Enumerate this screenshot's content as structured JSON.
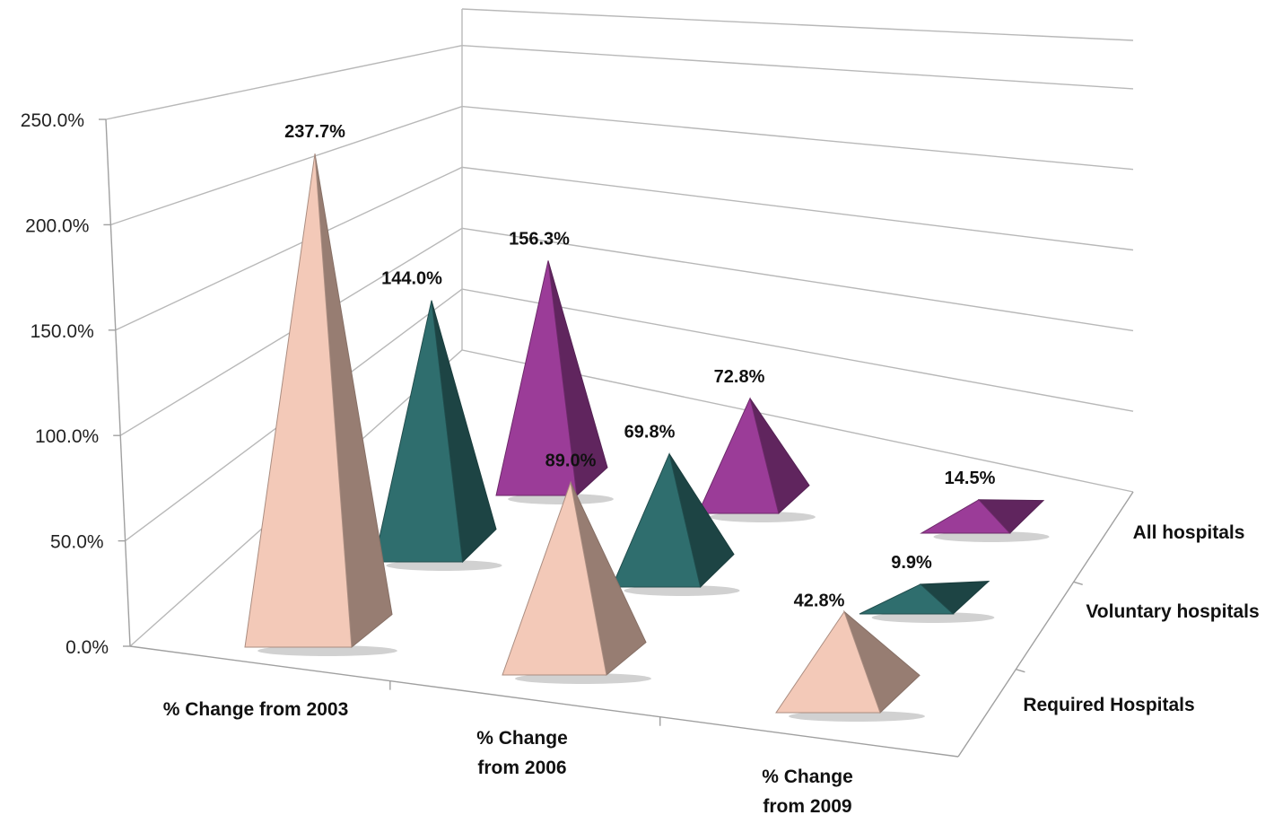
{
  "chart_data": {
    "type": "bar",
    "style": "3d-pyramid",
    "categories": [
      "% Change from 2003",
      "% Change from 2006",
      "% Change from 2009"
    ],
    "series": [
      {
        "name": "Required Hospitals",
        "values": [
          237.7,
          89.0,
          42.8
        ],
        "color": "#F3C9B8"
      },
      {
        "name": "Voluntary hospitals",
        "values": [
          144.0,
          69.8,
          9.9
        ],
        "color": "#2F6E6E"
      },
      {
        "name": "All hospitals",
        "values": [
          156.3,
          72.8,
          14.5
        ],
        "color": "#9B3C98"
      }
    ],
    "data_labels": [
      [
        "237.7%",
        "89.0%",
        "42.8%"
      ],
      [
        "144.0%",
        "69.8%",
        "9.9%"
      ],
      [
        "156.3%",
        "72.8%",
        "14.5%"
      ]
    ],
    "y_tick_labels": [
      "0.0%",
      "50.0%",
      "100.0%",
      "150.0%",
      "200.0%",
      "250.0%"
    ],
    "ylim": [
      0,
      250
    ],
    "title": "",
    "xlabel": "",
    "ylabel": "",
    "grid": true,
    "legend": "none"
  }
}
